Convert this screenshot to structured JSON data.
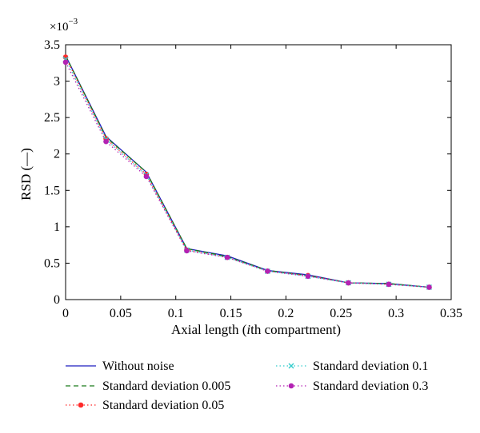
{
  "chart_data": {
    "type": "line",
    "title": "",
    "xlabel_prefix": "Axial length (",
    "xlabel_italic": "i",
    "xlabel_suffix": "th compartment)",
    "ylabel": "RSD (—)",
    "y_multiplier": "×10",
    "y_multiplier_exp": "−3",
    "xlim": [
      0,
      0.35
    ],
    "ylim": [
      0,
      3.5
    ],
    "x_ticks": [
      0,
      0.05,
      0.1,
      0.15,
      0.2,
      0.25,
      0.3,
      0.35
    ],
    "x_tick_labels": [
      "0",
      "0.05",
      "0.1",
      "0.15",
      "0.2",
      "0.25",
      "0.3",
      "0.35"
    ],
    "y_ticks": [
      0,
      0.5,
      1,
      1.5,
      2,
      2.5,
      3,
      3.5
    ],
    "y_tick_labels": [
      "0",
      "0.5",
      "1",
      "1.5",
      "2",
      "2.5",
      "3",
      "3.5"
    ],
    "grid": false,
    "legend_position": "bottom",
    "x": [
      0,
      0.0367,
      0.0733,
      0.11,
      0.1467,
      0.1833,
      0.22,
      0.2567,
      0.2933,
      0.33
    ],
    "series": [
      {
        "name": "Without noise",
        "color": "#1f1fbf",
        "dash": "solid",
        "marker": "none",
        "values": [
          3.35,
          2.24,
          1.75,
          0.7,
          0.6,
          0.4,
          0.34,
          0.23,
          0.22,
          0.17
        ]
      },
      {
        "name": "Standard deviation 0.005",
        "color": "#1a7a1a",
        "dash": "dashed",
        "marker": "none",
        "values": [
          3.35,
          2.23,
          1.75,
          0.7,
          0.59,
          0.4,
          0.33,
          0.23,
          0.22,
          0.17
        ]
      },
      {
        "name": "Standard deviation 0.05",
        "color": "#ff2a2a",
        "dash": "dotted",
        "marker": "dot",
        "values": [
          3.33,
          2.21,
          1.72,
          0.68,
          0.58,
          0.39,
          0.33,
          0.23,
          0.21,
          0.17
        ]
      },
      {
        "name": "Standard deviation 0.1",
        "color": "#33cccc",
        "dash": "dotted",
        "marker": "x",
        "values": [
          3.3,
          2.2,
          1.71,
          0.68,
          0.58,
          0.39,
          0.32,
          0.23,
          0.21,
          0.17
        ]
      },
      {
        "name": "Standard deviation 0.3",
        "color": "#b322b3",
        "dash": "dotted",
        "marker": "dot",
        "values": [
          3.26,
          2.17,
          1.69,
          0.67,
          0.58,
          0.39,
          0.32,
          0.23,
          0.21,
          0.17
        ]
      }
    ]
  }
}
